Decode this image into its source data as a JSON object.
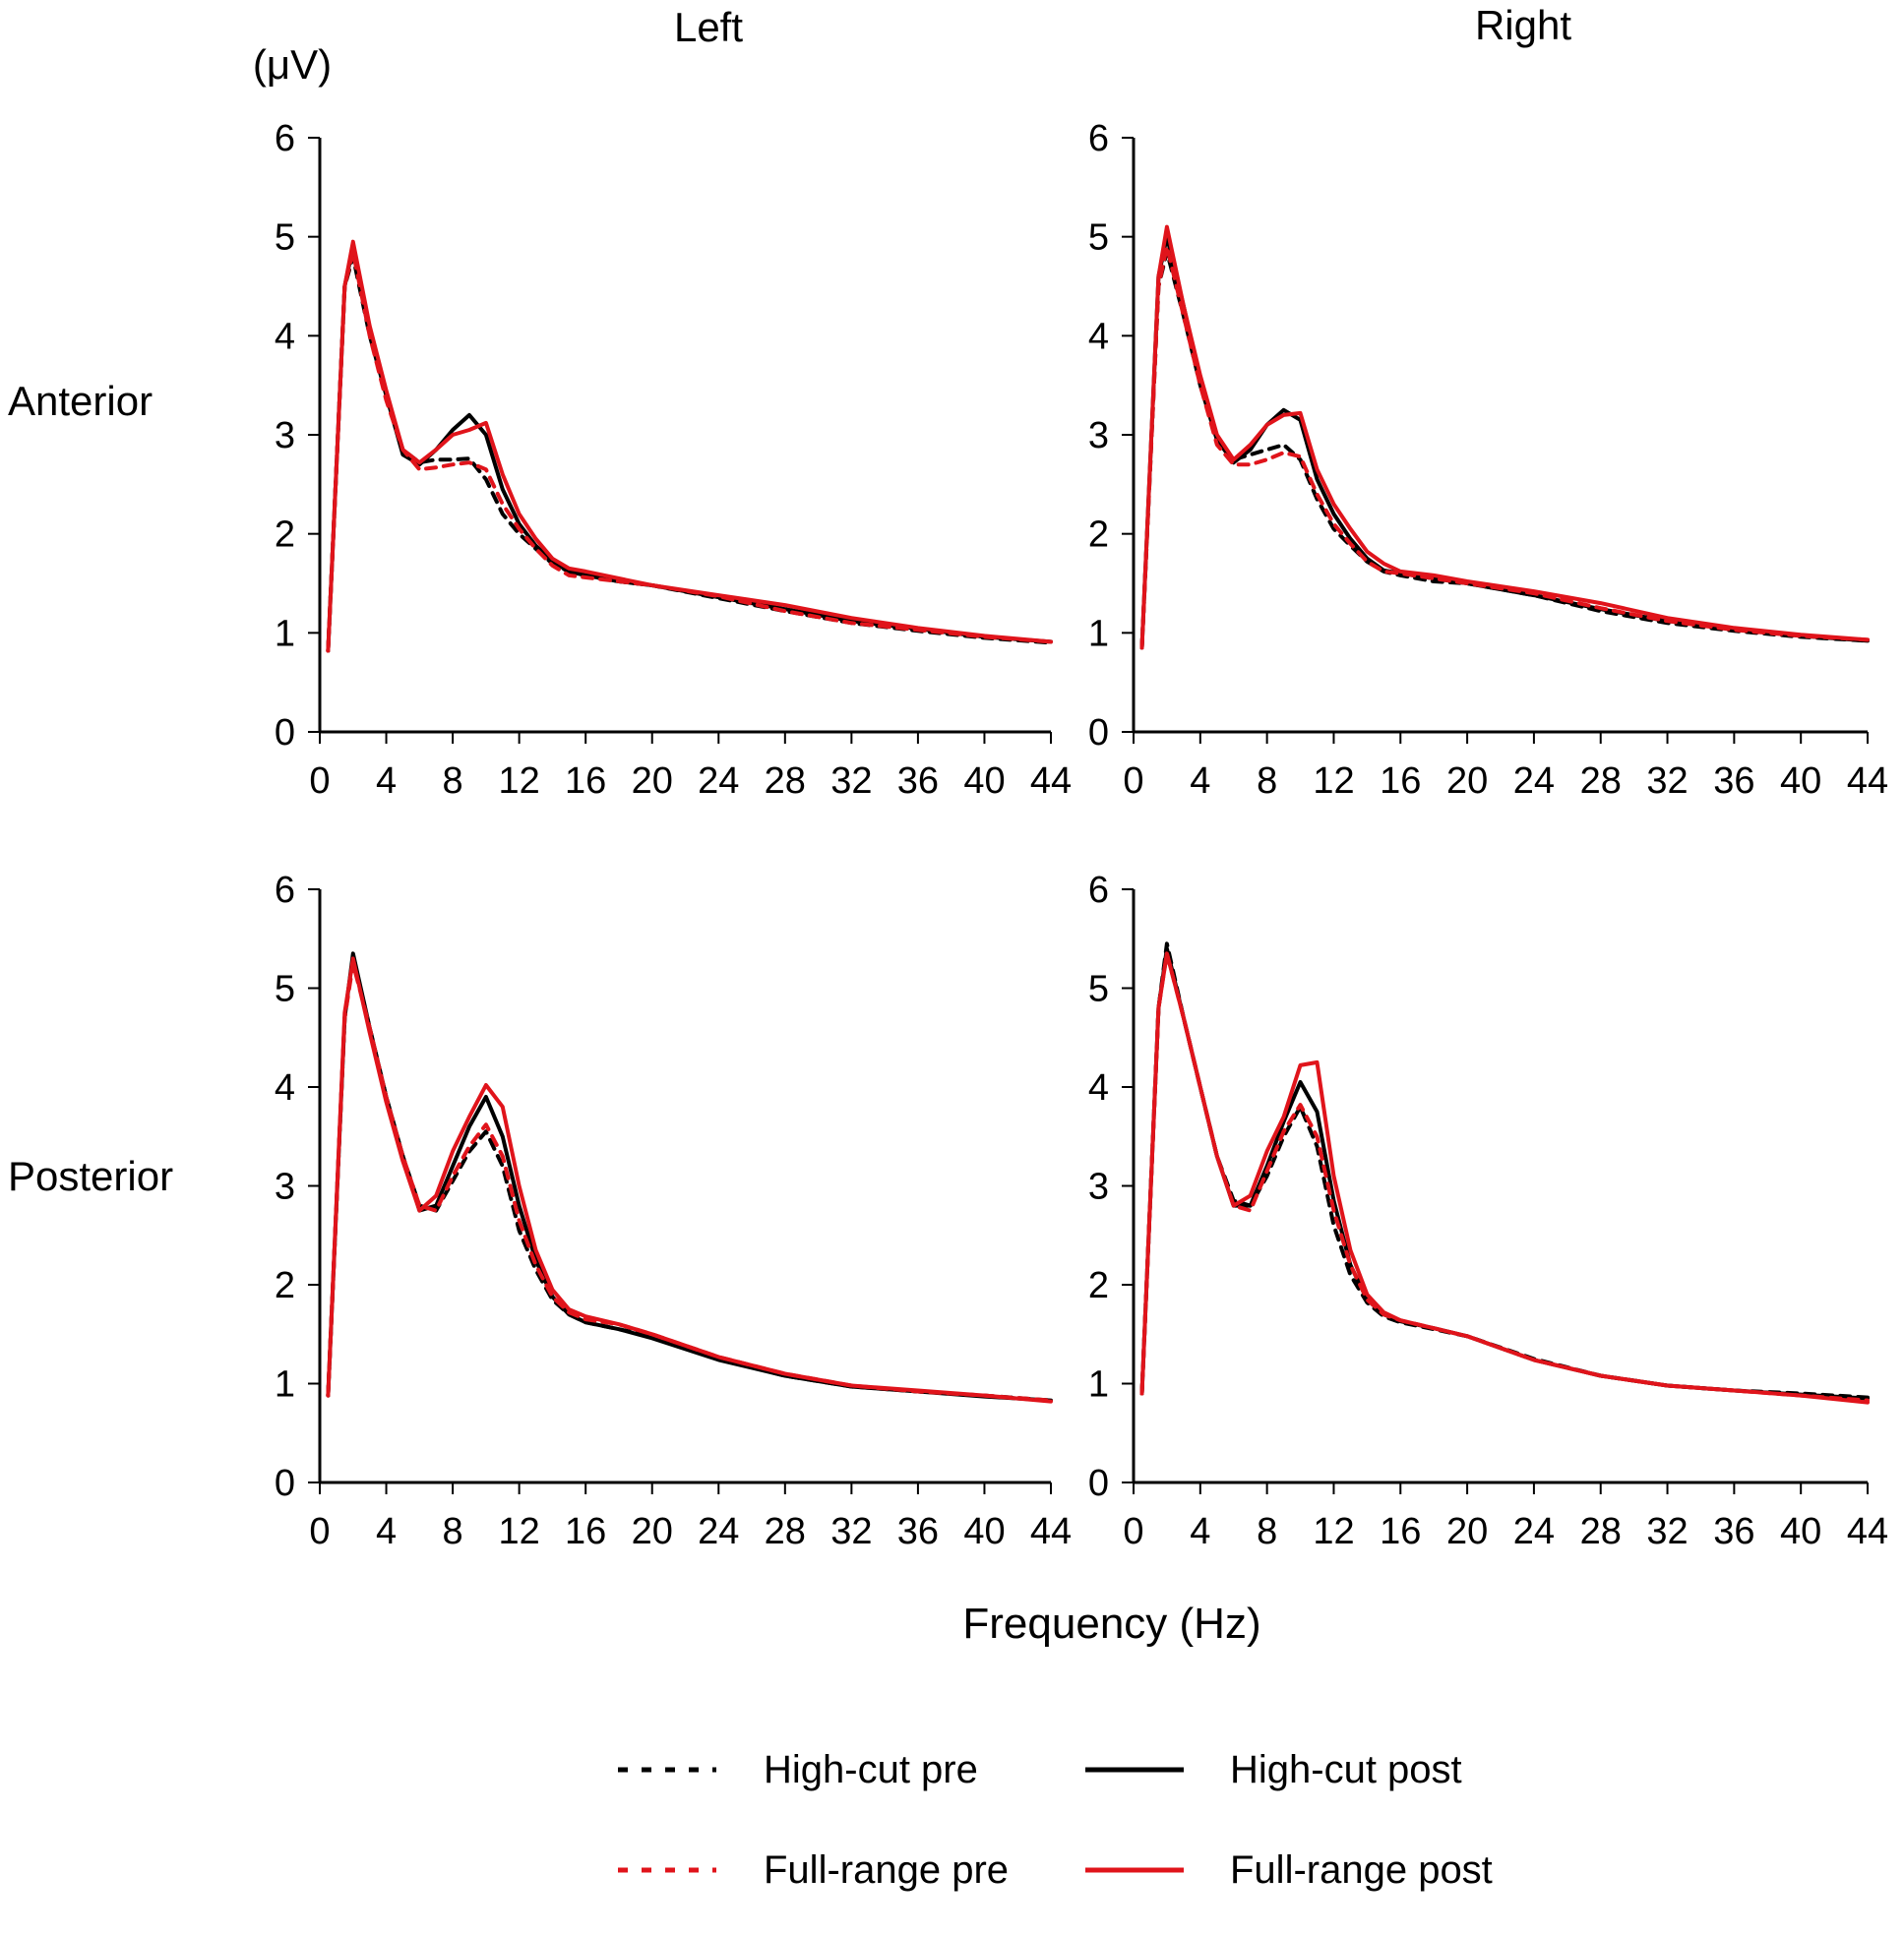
{
  "figure": {
    "columns": [
      "Left",
      "Right"
    ],
    "rows": [
      "Anterior",
      "Posterior"
    ],
    "ylabel": "(μV)",
    "xlabel": "Frequency (Hz)"
  },
  "legend": {
    "placement": "bottom",
    "items": [
      {
        "label": "High-cut pre",
        "color": "#000000",
        "style": "dashed"
      },
      {
        "label": "High-cut post",
        "color": "#000000",
        "style": "solid"
      },
      {
        "label": "Full-range pre",
        "color": "#e0141b",
        "style": "dashed"
      },
      {
        "label": "Full-range post",
        "color": "#e0141b",
        "style": "solid"
      }
    ]
  },
  "chart_data": [
    {
      "type": "line",
      "row": "Anterior",
      "column": "Left",
      "xlim": [
        0,
        44
      ],
      "ylim": [
        0,
        6
      ],
      "xticks": [
        0,
        4,
        8,
        12,
        16,
        20,
        24,
        28,
        32,
        36,
        40,
        44
      ],
      "yticks": [
        0,
        1,
        2,
        3,
        4,
        5,
        6
      ],
      "x": [
        0.5,
        1.5,
        2,
        3,
        4,
        5,
        6,
        7,
        8,
        9,
        10,
        11,
        12,
        13,
        14,
        15,
        16,
        18,
        20,
        24,
        28,
        32,
        36,
        40,
        44
      ],
      "series": [
        {
          "name": "High-cut pre",
          "values": [
            0.82,
            4.5,
            4.8,
            4.0,
            3.4,
            2.85,
            2.72,
            2.75,
            2.75,
            2.76,
            2.55,
            2.2,
            2.0,
            1.85,
            1.7,
            1.62,
            1.58,
            1.52,
            1.48,
            1.35,
            1.22,
            1.1,
            1.02,
            0.95,
            0.9
          ]
        },
        {
          "name": "High-cut post",
          "values": [
            0.82,
            4.5,
            4.9,
            4.05,
            3.4,
            2.8,
            2.7,
            2.85,
            3.05,
            3.2,
            3.0,
            2.45,
            2.1,
            1.88,
            1.72,
            1.62,
            1.58,
            1.52,
            1.48,
            1.36,
            1.24,
            1.12,
            1.04,
            0.96,
            0.91
          ]
        },
        {
          "name": "Full-range pre",
          "values": [
            0.82,
            4.5,
            4.85,
            4.0,
            3.35,
            2.85,
            2.65,
            2.67,
            2.7,
            2.72,
            2.65,
            2.3,
            2.05,
            1.85,
            1.68,
            1.58,
            1.56,
            1.52,
            1.48,
            1.37,
            1.22,
            1.1,
            1.03,
            0.96,
            0.91
          ]
        },
        {
          "name": "Full-range post",
          "values": [
            0.82,
            4.5,
            4.95,
            4.1,
            3.45,
            2.85,
            2.72,
            2.85,
            3.0,
            3.05,
            3.12,
            2.6,
            2.2,
            1.95,
            1.75,
            1.65,
            1.62,
            1.55,
            1.48,
            1.38,
            1.28,
            1.15,
            1.05,
            0.97,
            0.91
          ]
        }
      ]
    },
    {
      "type": "line",
      "row": "Anterior",
      "column": "Right",
      "xlim": [
        0,
        44
      ],
      "ylim": [
        0,
        6
      ],
      "xticks": [
        0,
        4,
        8,
        12,
        16,
        20,
        24,
        28,
        32,
        36,
        40,
        44
      ],
      "yticks": [
        0,
        1,
        2,
        3,
        4,
        5,
        6
      ],
      "x": [
        0.5,
        1.5,
        2,
        3,
        4,
        5,
        6,
        7,
        8,
        9,
        10,
        11,
        12,
        13,
        14,
        15,
        16,
        18,
        20,
        24,
        28,
        32,
        36,
        40,
        44
      ],
      "series": [
        {
          "name": "High-cut pre",
          "values": [
            0.85,
            4.5,
            4.85,
            4.2,
            3.5,
            2.95,
            2.75,
            2.8,
            2.85,
            2.9,
            2.75,
            2.35,
            2.05,
            1.88,
            1.72,
            1.62,
            1.58,
            1.52,
            1.5,
            1.38,
            1.22,
            1.1,
            1.02,
            0.96,
            0.92
          ]
        },
        {
          "name": "High-cut post",
          "values": [
            0.85,
            4.6,
            5.0,
            4.3,
            3.55,
            2.95,
            2.72,
            2.85,
            3.1,
            3.25,
            3.15,
            2.55,
            2.2,
            1.95,
            1.75,
            1.63,
            1.6,
            1.55,
            1.5,
            1.38,
            1.24,
            1.12,
            1.04,
            0.97,
            0.92
          ]
        },
        {
          "name": "Full-range pre",
          "values": [
            0.85,
            4.5,
            4.9,
            4.2,
            3.5,
            2.9,
            2.7,
            2.7,
            2.75,
            2.82,
            2.78,
            2.4,
            2.1,
            1.9,
            1.72,
            1.62,
            1.6,
            1.55,
            1.5,
            1.4,
            1.25,
            1.12,
            1.03,
            0.97,
            0.93
          ]
        },
        {
          "name": "Full-range post",
          "values": [
            0.85,
            4.6,
            5.1,
            4.3,
            3.6,
            3.0,
            2.75,
            2.9,
            3.1,
            3.2,
            3.22,
            2.65,
            2.3,
            2.05,
            1.82,
            1.7,
            1.62,
            1.58,
            1.52,
            1.42,
            1.3,
            1.15,
            1.05,
            0.98,
            0.93
          ]
        }
      ]
    },
    {
      "type": "line",
      "row": "Posterior",
      "column": "Left",
      "xlim": [
        0,
        44
      ],
      "ylim": [
        0,
        6
      ],
      "xticks": [
        0,
        4,
        8,
        12,
        16,
        20,
        24,
        28,
        32,
        36,
        40,
        44
      ],
      "yticks": [
        0,
        1,
        2,
        3,
        4,
        5,
        6
      ],
      "x": [
        0.5,
        1.5,
        2,
        3,
        4,
        5,
        6,
        7,
        8,
        9,
        10,
        11,
        12,
        13,
        14,
        15,
        16,
        18,
        20,
        24,
        28,
        32,
        36,
        40,
        44
      ],
      "series": [
        {
          "name": "High-cut pre",
          "values": [
            0.88,
            4.7,
            5.3,
            4.6,
            3.9,
            3.3,
            2.8,
            2.75,
            3.05,
            3.35,
            3.55,
            3.2,
            2.55,
            2.15,
            1.85,
            1.7,
            1.62,
            1.55,
            1.48,
            1.25,
            1.08,
            0.97,
            0.92,
            0.88,
            0.83
          ]
        },
        {
          "name": "High-cut post",
          "values": [
            0.88,
            4.7,
            5.35,
            4.6,
            3.9,
            3.3,
            2.75,
            2.8,
            3.2,
            3.6,
            3.9,
            3.5,
            2.8,
            2.25,
            1.88,
            1.7,
            1.62,
            1.55,
            1.46,
            1.24,
            1.08,
            0.97,
            0.92,
            0.87,
            0.83
          ]
        },
        {
          "name": "Full-range pre",
          "values": [
            0.88,
            4.7,
            5.25,
            4.6,
            3.9,
            3.3,
            2.8,
            2.75,
            3.1,
            3.4,
            3.62,
            3.3,
            2.65,
            2.2,
            1.88,
            1.72,
            1.65,
            1.6,
            1.5,
            1.27,
            1.1,
            0.98,
            0.92,
            0.88,
            0.83
          ]
        },
        {
          "name": "Full-range post",
          "values": [
            0.88,
            4.75,
            5.3,
            4.55,
            3.85,
            3.25,
            2.75,
            2.9,
            3.35,
            3.7,
            4.02,
            3.8,
            3.0,
            2.35,
            1.95,
            1.75,
            1.68,
            1.6,
            1.5,
            1.27,
            1.1,
            0.98,
            0.93,
            0.88,
            0.82
          ]
        }
      ]
    },
    {
      "type": "line",
      "row": "Posterior",
      "column": "Right",
      "xlim": [
        0,
        44
      ],
      "ylim": [
        0,
        6
      ],
      "xticks": [
        0,
        4,
        8,
        12,
        16,
        20,
        24,
        28,
        32,
        36,
        40,
        44
      ],
      "yticks": [
        0,
        1,
        2,
        3,
        4,
        5,
        6
      ],
      "x": [
        0.5,
        1.5,
        2,
        3,
        4,
        5,
        6,
        7,
        8,
        9,
        10,
        11,
        12,
        13,
        14,
        15,
        16,
        18,
        20,
        24,
        28,
        32,
        36,
        40,
        44
      ],
      "series": [
        {
          "name": "High-cut pre",
          "values": [
            0.9,
            4.8,
            5.45,
            4.7,
            4.0,
            3.3,
            2.85,
            2.8,
            3.1,
            3.5,
            3.8,
            3.4,
            2.6,
            2.1,
            1.82,
            1.68,
            1.62,
            1.55,
            1.48,
            1.25,
            1.08,
            0.98,
            0.93,
            0.9,
            0.86
          ]
        },
        {
          "name": "High-cut post",
          "values": [
            0.9,
            4.8,
            5.4,
            4.7,
            4.0,
            3.3,
            2.8,
            2.8,
            3.2,
            3.65,
            4.05,
            3.75,
            2.85,
            2.2,
            1.85,
            1.7,
            1.63,
            1.56,
            1.48,
            1.24,
            1.08,
            0.98,
            0.93,
            0.89,
            0.85
          ]
        },
        {
          "name": "Full-range pre",
          "values": [
            0.9,
            4.8,
            5.35,
            4.7,
            4.0,
            3.3,
            2.8,
            2.75,
            3.15,
            3.55,
            3.82,
            3.5,
            2.75,
            2.2,
            1.85,
            1.7,
            1.64,
            1.56,
            1.48,
            1.24,
            1.08,
            0.98,
            0.93,
            0.88,
            0.83
          ]
        },
        {
          "name": "Full-range post",
          "values": [
            0.9,
            4.8,
            5.35,
            4.7,
            4.0,
            3.3,
            2.8,
            2.9,
            3.35,
            3.7,
            4.22,
            4.25,
            3.1,
            2.35,
            1.9,
            1.72,
            1.64,
            1.56,
            1.48,
            1.24,
            1.08,
            0.98,
            0.93,
            0.88,
            0.81
          ]
        }
      ]
    }
  ]
}
